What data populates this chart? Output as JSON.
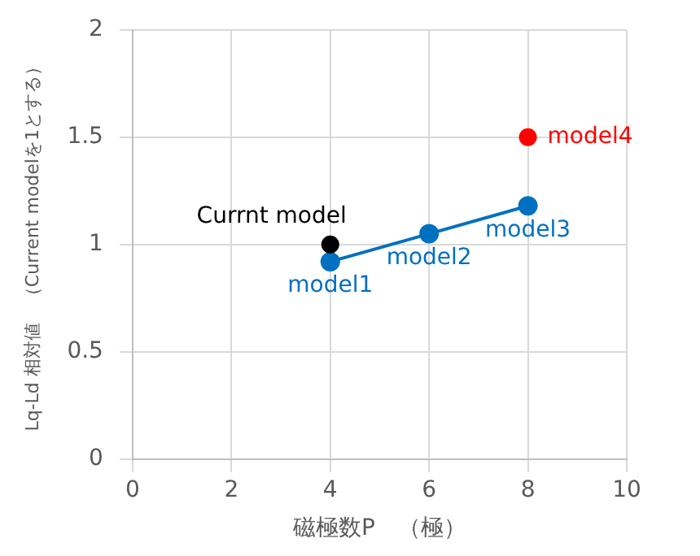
{
  "chart_data": {
    "type": "scatter",
    "xlabel": "磁極数P　（極）",
    "ylabel": "Lq-Ld 相対値　（Current modelを1とする）",
    "xlim": [
      0,
      10
    ],
    "xticks": [
      0,
      2,
      4,
      6,
      8,
      10
    ],
    "ylim": [
      0,
      2
    ],
    "yticks": [
      0,
      0.5,
      1,
      1.5,
      2
    ],
    "grid": true,
    "legend": false,
    "marker": "circle",
    "series": [
      {
        "type": "scatter",
        "color": "#000000",
        "x": [
          4
        ],
        "values": [
          1.0
        ]
      },
      {
        "type": "line",
        "color": "#0070c0",
        "x": [
          4,
          6,
          8
        ],
        "values": [
          0.92,
          1.05,
          1.18
        ]
      },
      {
        "type": "scatter",
        "color": "#ff0000",
        "x": [
          8
        ],
        "values": [
          1.5
        ]
      }
    ],
    "annotations": [
      {
        "text": "Currnt model",
        "x": 4,
        "y": 1.0
      },
      {
        "text": "model1",
        "x": 4,
        "y": 0.92
      },
      {
        "text": "model2",
        "x": 6,
        "y": 1.05
      },
      {
        "text": "model3",
        "x": 8,
        "y": 1.18
      },
      {
        "text": "model4",
        "x": 8,
        "y": 1.5
      }
    ]
  }
}
